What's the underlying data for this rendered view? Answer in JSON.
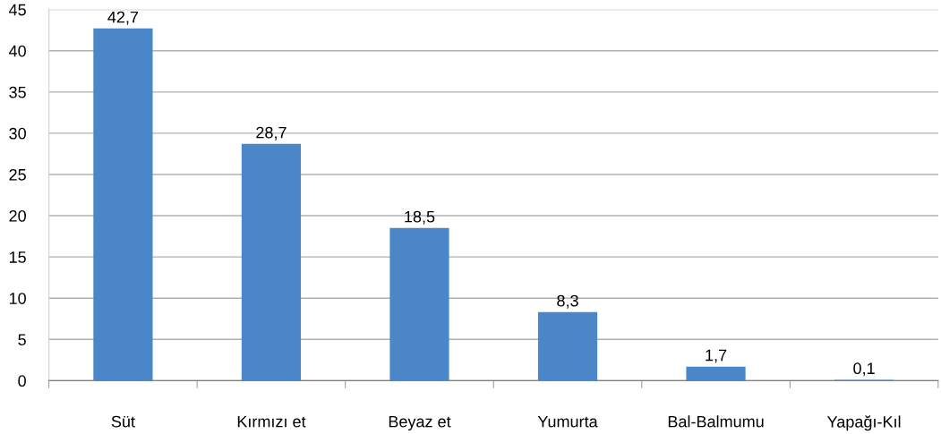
{
  "chart_data": {
    "type": "bar",
    "categories": [
      "Süt",
      "Kırmızı et",
      "Beyaz et",
      "Yumurta",
      "Bal-Balmumu",
      "Yapağı-Kıl"
    ],
    "values": [
      42.7,
      28.7,
      18.5,
      8.3,
      1.7,
      0.1
    ],
    "value_labels": [
      "42,7",
      "28,7",
      "18,5",
      "8,3",
      "1,7",
      "0,1"
    ],
    "color": "#4a86c8",
    "ylim": [
      0,
      45
    ],
    "yticks": [
      0,
      5,
      10,
      15,
      20,
      25,
      30,
      35,
      40,
      45
    ],
    "grid": "y"
  }
}
